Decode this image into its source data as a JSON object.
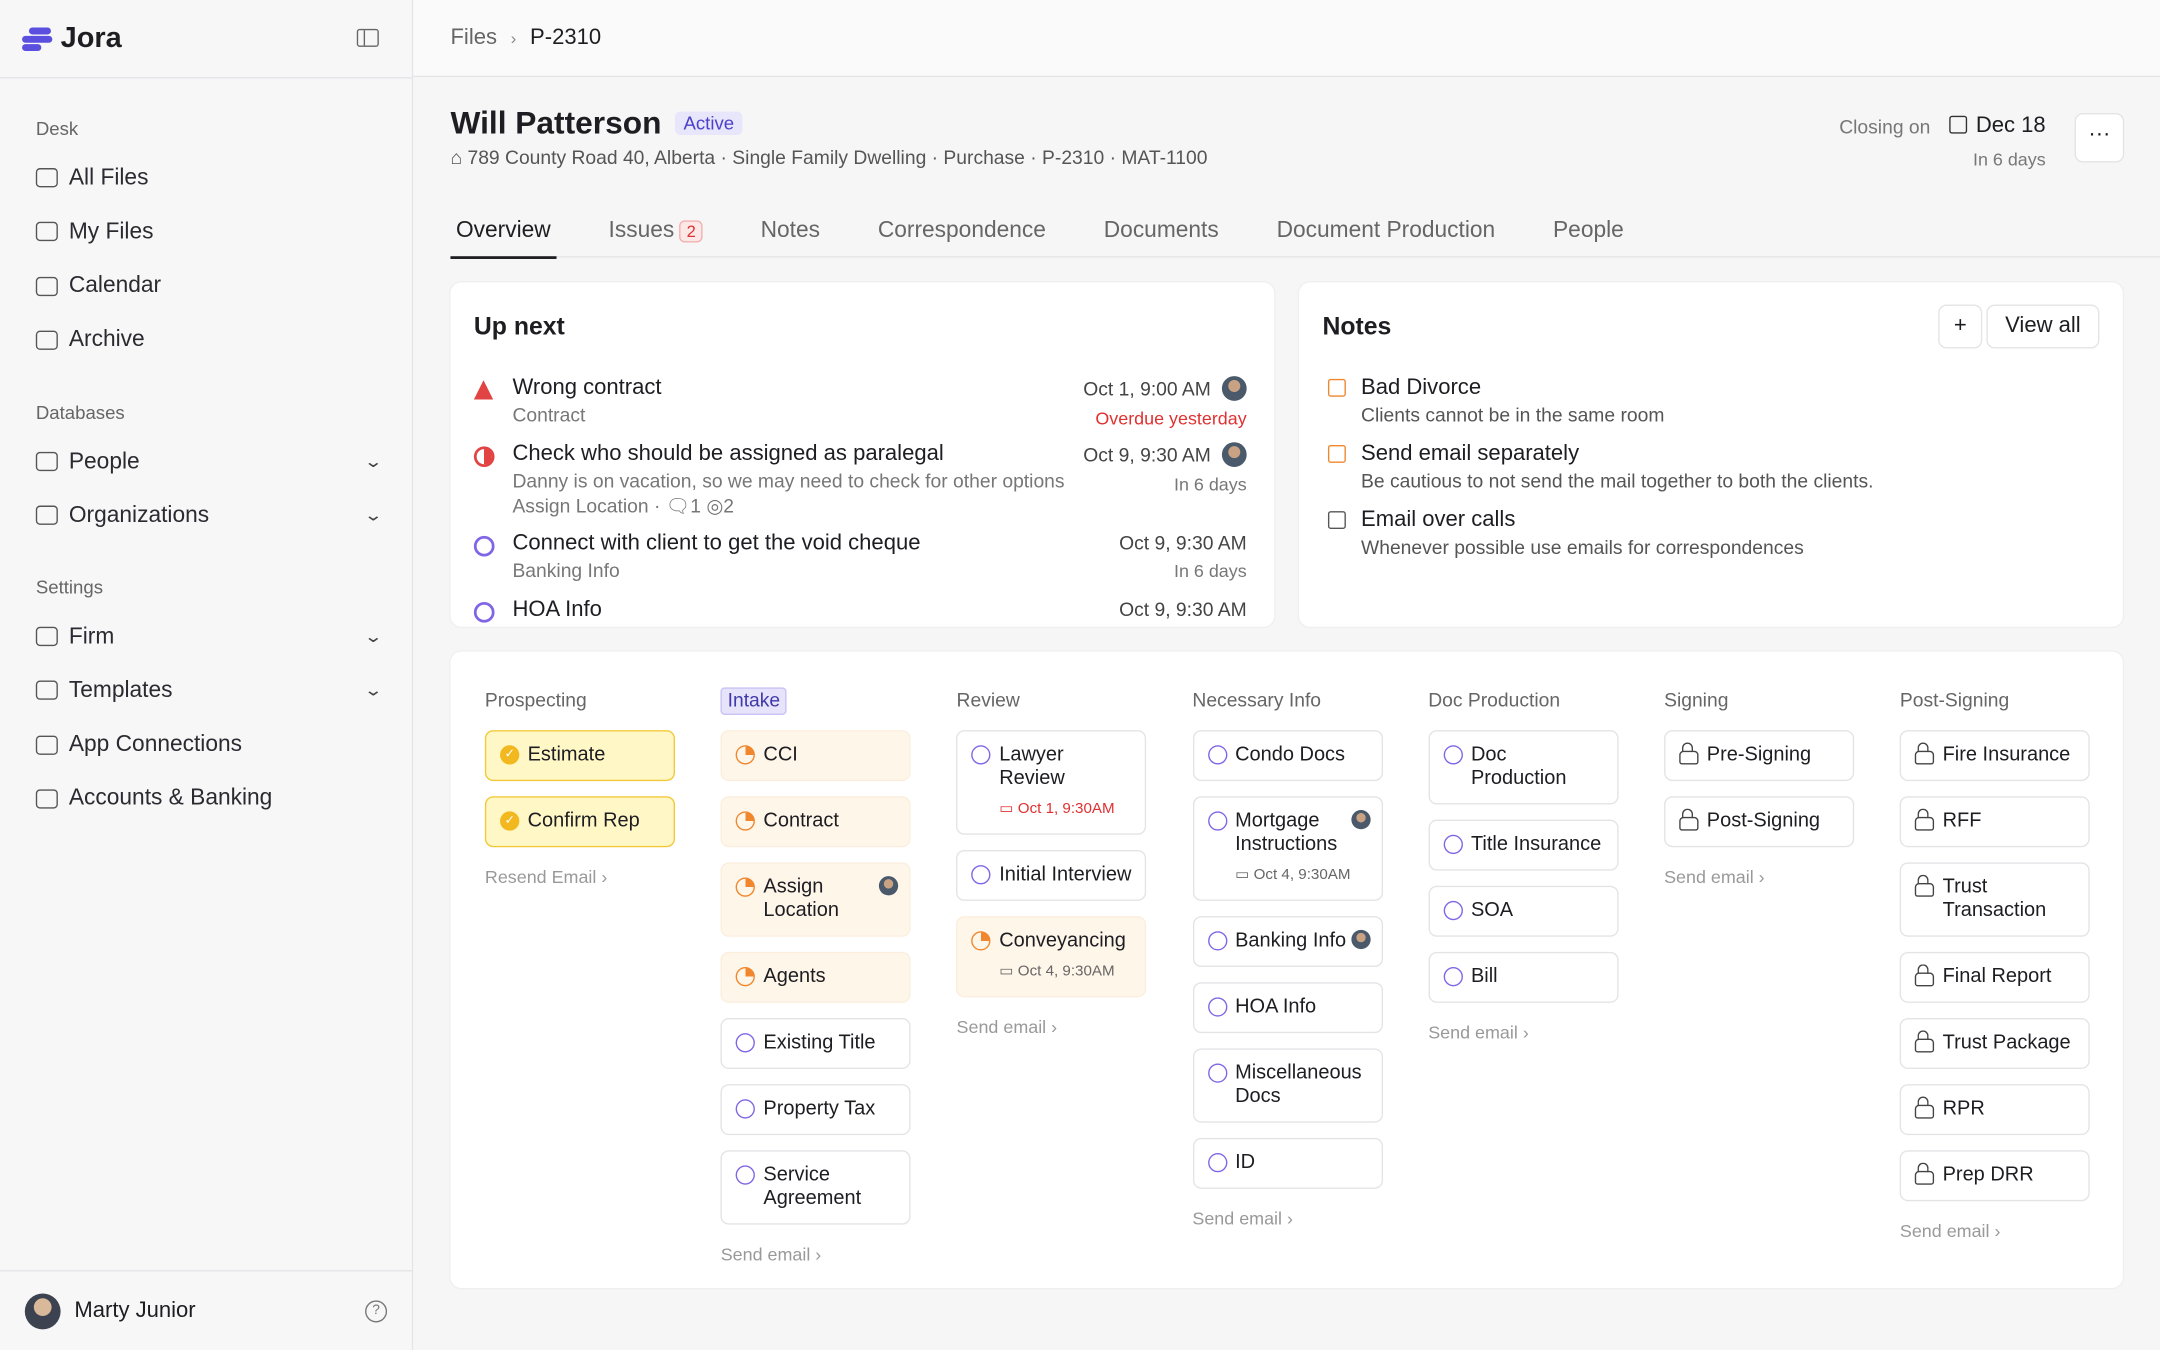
{
  "app": {
    "name": "Jora"
  },
  "sidebar": {
    "sections": [
      {
        "label": "Desk",
        "items": [
          {
            "label": "All Files"
          },
          {
            "label": "My Files"
          },
          {
            "label": "Calendar"
          },
          {
            "label": "Archive"
          }
        ]
      },
      {
        "label": "Databases",
        "items": [
          {
            "label": "People",
            "expandable": true
          },
          {
            "label": "Organizations",
            "expandable": true
          }
        ]
      },
      {
        "label": "Settings",
        "items": [
          {
            "label": "Firm",
            "expandable": true
          },
          {
            "label": "Templates",
            "expandable": true
          },
          {
            "label": "App Connections"
          },
          {
            "label": "Accounts & Banking"
          }
        ]
      }
    ],
    "user": {
      "name": "Marty Junior"
    }
  },
  "breadcrumb": {
    "root": "Files",
    "current": "P-2310"
  },
  "file": {
    "name": "Will Patterson",
    "status": "Active",
    "address": "789 County Road 40, Alberta · Single Family Dwelling · Purchase · P-2310 · MAT-1100",
    "closing_label": "Closing on",
    "closing_date": "Dec 18",
    "closing_in": "In 6 days",
    "more": "···"
  },
  "tabs": [
    {
      "label": "Overview",
      "active": true
    },
    {
      "label": "Issues",
      "count": "2"
    },
    {
      "label": "Notes"
    },
    {
      "label": "Correspondence"
    },
    {
      "label": "Documents"
    },
    {
      "label": "Document Production"
    },
    {
      "label": "People"
    }
  ],
  "up_next": {
    "title": "Up next",
    "items": [
      {
        "title": "Wrong contract",
        "sub": "Contract",
        "date": "Oct 1, 9:00 AM",
        "due": "Overdue yesterday",
        "overdue": true,
        "status": "issue",
        "avatar": true
      },
      {
        "title": "Check who should be assigned as paralegal",
        "sub": "Danny is on vacation, so we may need to check for other options",
        "meta": "Assign Location ·",
        "comments": "1",
        "watchers": "2",
        "date": "Oct 9, 9:30 AM",
        "due": "In 6 days",
        "status": "blocked",
        "avatar": true
      },
      {
        "title": "Connect with client to get the void cheque",
        "sub": "Banking Info",
        "date": "Oct 9, 9:30 AM",
        "due": "In 6 days",
        "status": "todo"
      },
      {
        "title": "HOA Info",
        "date": "Oct 9, 9:30 AM",
        "status": "todo"
      }
    ]
  },
  "notes": {
    "title": "Notes",
    "add": "+",
    "view_all": "View all",
    "items": [
      {
        "title": "Bad Divorce",
        "body": "Clients cannot be in the same room",
        "accent": true
      },
      {
        "title": "Send email separately",
        "body": "Be cautious to not send the mail together to both the clients.",
        "accent": true
      },
      {
        "title": "Email over calls",
        "body": "Whenever possible use emails for correspondences",
        "accent": false
      }
    ]
  },
  "pipeline": [
    {
      "stage": "Prospecting",
      "footer": "Resend Email",
      "cards": [
        {
          "label": "Estimate",
          "state": "done"
        },
        {
          "label": "Confirm Rep",
          "state": "done"
        }
      ]
    },
    {
      "stage": "Intake",
      "current": true,
      "footer": "Send email",
      "cards": [
        {
          "label": "CCI",
          "state": "prog"
        },
        {
          "label": "Contract",
          "state": "prog"
        },
        {
          "label": "Assign Location",
          "state": "prog",
          "avatar": true
        },
        {
          "label": "Agents",
          "state": "prog"
        },
        {
          "label": "Existing Title",
          "state": "todo"
        },
        {
          "label": "Property Tax",
          "state": "todo"
        },
        {
          "label": "Service Agreement",
          "state": "todo"
        }
      ]
    },
    {
      "stage": "Review",
      "footer": "Send email",
      "cards": [
        {
          "label": "Lawyer Review",
          "state": "todo",
          "date": "Oct 1, 9:30AM",
          "overdue": true
        },
        {
          "label": "Initial Interview",
          "state": "todo"
        },
        {
          "label": "Conveyancing",
          "state": "prog",
          "date": "Oct 4, 9:30AM"
        }
      ]
    },
    {
      "stage": "Necessary Info",
      "footer": "Send email",
      "cards": [
        {
          "label": "Condo Docs",
          "state": "todo"
        },
        {
          "label": "Mortgage Instructions",
          "state": "todo",
          "avatar": true,
          "date": "Oct 4, 9:30AM"
        },
        {
          "label": "Banking Info",
          "state": "todo",
          "avatar": true
        },
        {
          "label": "HOA Info",
          "state": "todo"
        },
        {
          "label": "Miscellaneous Docs",
          "state": "todo"
        },
        {
          "label": "ID",
          "state": "todo"
        }
      ]
    },
    {
      "stage": "Doc Production",
      "footer": "Send email",
      "cards": [
        {
          "label": "Doc Production",
          "state": "todo"
        },
        {
          "label": "Title Insurance",
          "state": "todo"
        },
        {
          "label": "SOA",
          "state": "todo"
        },
        {
          "label": "Bill",
          "state": "todo"
        }
      ]
    },
    {
      "stage": "Signing",
      "footer": "Send email",
      "cards": [
        {
          "label": "Pre-Signing",
          "state": "lock"
        },
        {
          "label": "Post-Signing",
          "state": "lock"
        }
      ]
    },
    {
      "stage": "Post-Signing",
      "footer": "Send email",
      "cards": [
        {
          "label": "Fire Insurance",
          "state": "lock"
        },
        {
          "label": "RFF",
          "state": "lock"
        },
        {
          "label": "Trust Transaction",
          "state": "lock"
        },
        {
          "label": "Final Report",
          "state": "lock"
        },
        {
          "label": "Trust Package",
          "state": "lock"
        },
        {
          "label": "RPR",
          "state": "lock"
        },
        {
          "label": "Prep DRR",
          "state": "lock"
        }
      ]
    }
  ]
}
